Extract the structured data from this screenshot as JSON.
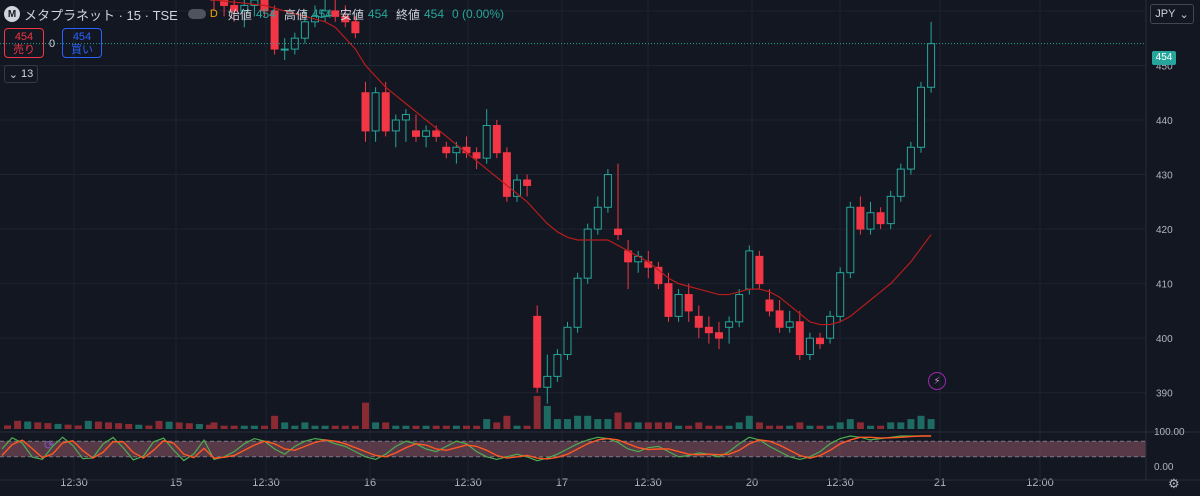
{
  "header": {
    "logo": "M",
    "symbol": "メタプラネット · 15 · TSE",
    "delay_badge": "D",
    "ohlc": [
      {
        "label": "始値",
        "value": "454"
      },
      {
        "label": "高値",
        "value": "454"
      },
      {
        "label": "安値",
        "value": "454"
      },
      {
        "label": "終値",
        "value": "454"
      }
    ],
    "change": "0 (0.00%)"
  },
  "order": {
    "sell_price": "454",
    "sell_label": "売り",
    "spread": "0",
    "buy_price": "454",
    "buy_label": "買い"
  },
  "collapse_count": "13",
  "currency": "JPY",
  "last_price_label": "454",
  "settings_icon": "gear-icon",
  "flash_icon": "lightning-icon",
  "colors": {
    "up": "#26a69a",
    "down": "#f23645",
    "ma": "#b71c1c",
    "stoch_k": "#4caf50",
    "stoch_d": "#ff5722"
  },
  "chart_data": {
    "type": "candlestick",
    "interval": "15",
    "x_tick_labels": [
      "12:30",
      "15",
      "12:30",
      "16",
      "12:30",
      "17",
      "12:30",
      "20",
      "12:30",
      "21",
      "12:00"
    ],
    "y_tick_labels": [
      "460",
      "450",
      "440",
      "430",
      "420",
      "410",
      "400",
      "390"
    ],
    "ylim": [
      385,
      462
    ],
    "last_price": 454,
    "candles": [
      [
        465,
        466,
        460,
        462
      ],
      [
        462,
        464,
        459,
        461
      ],
      [
        461,
        463,
        458,
        460
      ],
      [
        460,
        462,
        457,
        461
      ],
      [
        461,
        463,
        459,
        462
      ],
      [
        462,
        463,
        459,
        460
      ],
      [
        460,
        461,
        452,
        453
      ],
      [
        453,
        455,
        451,
        453
      ],
      [
        453,
        456,
        452,
        455
      ],
      [
        455,
        460,
        454,
        458
      ],
      [
        458,
        461,
        457,
        459
      ],
      [
        459,
        462,
        458,
        460
      ],
      [
        460,
        462,
        458,
        459
      ],
      [
        459,
        461,
        457,
        458
      ],
      [
        458,
        459,
        455,
        456
      ],
      [
        445,
        447,
        436,
        438
      ],
      [
        438,
        446,
        436,
        445
      ],
      [
        445,
        447,
        437,
        438
      ],
      [
        438,
        441,
        435,
        440
      ],
      [
        440,
        442,
        436,
        441
      ],
      [
        438,
        441,
        436,
        437
      ],
      [
        437,
        439,
        435,
        438
      ],
      [
        438,
        439,
        436,
        437
      ],
      [
        435,
        436,
        433,
        434
      ],
      [
        434,
        436,
        432,
        435
      ],
      [
        435,
        437,
        433,
        434
      ],
      [
        434,
        435,
        431,
        433
      ],
      [
        433,
        442,
        432,
        439
      ],
      [
        439,
        440,
        433,
        434
      ],
      [
        434,
        435,
        425,
        426
      ],
      [
        426,
        430,
        425,
        429
      ],
      [
        429,
        430,
        426,
        428
      ],
      [
        404,
        406,
        390,
        391
      ],
      [
        391,
        397,
        388,
        393
      ],
      [
        393,
        398,
        392,
        397
      ],
      [
        397,
        403,
        396,
        402
      ],
      [
        402,
        412,
        401,
        411
      ],
      [
        411,
        421,
        410,
        420
      ],
      [
        420,
        426,
        419,
        424
      ],
      [
        424,
        431,
        423,
        430
      ],
      [
        420,
        432,
        418,
        419
      ],
      [
        416,
        418,
        409,
        414
      ],
      [
        414,
        416,
        412,
        415
      ],
      [
        414,
        416,
        411,
        413
      ],
      [
        413,
        414,
        409,
        410
      ],
      [
        410,
        412,
        403,
        404
      ],
      [
        404,
        409,
        403,
        408
      ],
      [
        408,
        410,
        403,
        405
      ],
      [
        404,
        406,
        400,
        402
      ],
      [
        402,
        404,
        399,
        401
      ],
      [
        401,
        403,
        398,
        400
      ],
      [
        402,
        404,
        399,
        403
      ],
      [
        403,
        409,
        402,
        408
      ],
      [
        409,
        417,
        408,
        416
      ],
      [
        415,
        416,
        409,
        410
      ],
      [
        407,
        409,
        404,
        405
      ],
      [
        405,
        407,
        401,
        402
      ],
      [
        402,
        405,
        401,
        403
      ],
      [
        403,
        405,
        396,
        397
      ],
      [
        397,
        401,
        396,
        400
      ],
      [
        400,
        401,
        398,
        399
      ],
      [
        400,
        405,
        399,
        404
      ],
      [
        404,
        413,
        403,
        412
      ],
      [
        412,
        425,
        411,
        424
      ],
      [
        424,
        426,
        419,
        420
      ],
      [
        420,
        425,
        419,
        423
      ],
      [
        423,
        424,
        420,
        421
      ],
      [
        421,
        427,
        420,
        426
      ],
      [
        426,
        432,
        425,
        431
      ],
      [
        431,
        436,
        430,
        435
      ],
      [
        435,
        447,
        434,
        446
      ],
      [
        446,
        458,
        445,
        454
      ]
    ],
    "moving_average": {
      "points": [
        [
          462
        ],
        [
          461.8
        ],
        [
          461.6
        ],
        [
          461.4
        ],
        [
          461.2
        ],
        [
          461
        ],
        [
          460.5
        ],
        [
          460
        ],
        [
          459.5
        ],
        [
          459
        ],
        [
          458.5
        ],
        [
          458
        ],
        [
          457
        ],
        [
          455
        ],
        [
          453
        ],
        [
          450
        ],
        [
          448
        ],
        [
          446
        ],
        [
          444.5
        ],
        [
          443
        ],
        [
          441.5
        ],
        [
          440
        ],
        [
          438.5
        ],
        [
          437
        ],
        [
          435.5
        ],
        [
          434
        ],
        [
          432.5
        ],
        [
          431
        ],
        [
          429.5
        ],
        [
          428
        ],
        [
          426.5
        ],
        [
          425
        ],
        [
          423
        ],
        [
          421
        ],
        [
          419.5
        ],
        [
          418.5
        ],
        [
          418
        ],
        [
          418
        ],
        [
          418
        ],
        [
          418
        ],
        [
          417
        ],
        [
          416
        ],
        [
          415
        ],
        [
          414
        ],
        [
          412.5
        ],
        [
          411
        ],
        [
          410
        ],
        [
          409.5
        ],
        [
          409
        ],
        [
          408.5
        ],
        [
          408
        ],
        [
          408
        ],
        [
          408.5
        ],
        [
          409
        ],
        [
          409
        ],
        [
          408.5
        ],
        [
          407.5
        ],
        [
          406
        ],
        [
          404.5
        ],
        [
          403
        ],
        [
          402.5
        ],
        [
          402.5
        ],
        [
          403
        ],
        [
          404
        ],
        [
          405.5
        ],
        [
          407
        ],
        [
          408.5
        ],
        [
          410
        ],
        [
          412
        ],
        [
          414
        ],
        [
          416.5
        ],
        [
          419
        ]
      ]
    },
    "volume": [
      2,
      1,
      1,
      1,
      1,
      1,
      4,
      2,
      1,
      2,
      1,
      1,
      1,
      1,
      1,
      8,
      2,
      2,
      1,
      1,
      1,
      1,
      1,
      1,
      1,
      1,
      1,
      3,
      2,
      4,
      1,
      1,
      10,
      7,
      3,
      3,
      4,
      4,
      3,
      3,
      5,
      2,
      2,
      2,
      2,
      2,
      1,
      1,
      2,
      1,
      1,
      1,
      2,
      4,
      2,
      1,
      1,
      1,
      2,
      1,
      1,
      1,
      2,
      3,
      2,
      1,
      1,
      2,
      2,
      3,
      4,
      3
    ],
    "stochastic": {
      "ylim": [
        0,
        100
      ],
      "y_tick_labels": [
        "100.00",
        "0.00"
      ],
      "k": [
        10,
        20,
        40,
        70,
        90,
        80,
        50,
        30,
        60,
        80,
        90,
        85,
        70,
        60,
        40,
        20,
        10,
        30,
        60,
        80,
        70,
        50,
        40,
        60,
        80,
        70,
        40,
        20,
        10,
        20,
        30,
        20,
        5,
        15,
        30,
        50,
        70,
        85,
        95,
        90,
        75,
        50,
        40,
        55,
        60,
        40,
        20,
        25,
        35,
        30,
        20,
        40,
        70,
        95,
        85,
        60,
        40,
        20,
        10,
        20,
        40,
        70,
        90,
        100,
        95,
        85,
        90,
        95,
        100,
        100,
        100,
        100
      ],
      "d": [
        15,
        18,
        25,
        45,
        65,
        80,
        70,
        50,
        45,
        60,
        75,
        85,
        80,
        70,
        55,
        40,
        25,
        20,
        35,
        55,
        70,
        65,
        50,
        45,
        55,
        65,
        60,
        45,
        25,
        15,
        20,
        25,
        15,
        12,
        18,
        30,
        50,
        70,
        85,
        90,
        85,
        70,
        55,
        48,
        50,
        50,
        40,
        30,
        28,
        30,
        28,
        30,
        45,
        70,
        85,
        80,
        65,
        45,
        25,
        15,
        25,
        45,
        70,
        85,
        95,
        95,
        92,
        93,
        95,
        98,
        100,
        100
      ]
    }
  }
}
